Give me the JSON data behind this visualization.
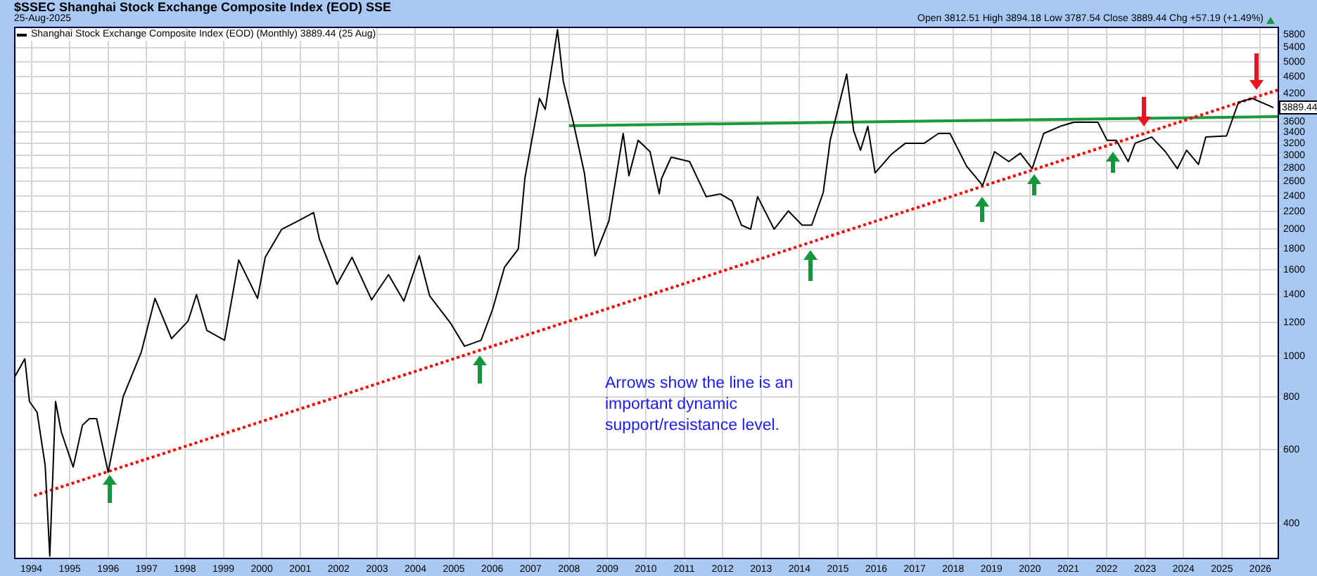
{
  "chart_data": {
    "type": "line",
    "title": "$SSEC Shanghai Stock Exchange Composite Index (EOD) SSE",
    "subtitle": "25-Aug-2025",
    "annotations": [
      "Open 3812.51 High 3894.18 Low 3787.54 Close 3889.44 Chg +57.19 (+1.49%)",
      {
        "text": "3889.44",
        "x": 2026.34,
        "y": 3889.44
      },
      "Arrows show the line is an important dynamic support/resistance level."
    ],
    "log": "y",
    "grid": true,
    "legend": "top left",
    "marker": "none",
    "xlim": [
      1993.55,
      2026.45
    ],
    "xticks": [
      1994,
      1995,
      1996,
      1997,
      1998,
      1999,
      2000,
      2001,
      2002,
      2003,
      2004,
      2005,
      2006,
      2007,
      2008,
      2009,
      2010,
      2011,
      2012,
      2013,
      2014,
      2015,
      2016,
      2017,
      2018,
      2019,
      2020,
      2021,
      2022,
      2023,
      2024,
      2025,
      2026
    ],
    "ylim": [
      332,
      6050
    ],
    "yticks": [
      400,
      600,
      800,
      1000,
      1200,
      1400,
      1600,
      1800,
      2000,
      2200,
      2400,
      2600,
      2800,
      3000,
      3200,
      3400,
      3600,
      4200,
      4600,
      5000,
      5400,
      5800
    ],
    "series": [
      {
        "name": "Shanghai Stock Exchange Composite Index (EOD) (Monthly) 3889.44 (25 Aug)",
        "color": "#000000",
        "line_style": "solid",
        "x": [
          1993.56,
          1993.83,
          1993.95,
          1994.15,
          1994.36,
          1994.48,
          1994.63,
          1994.78,
          1995.09,
          1995.33,
          1995.51,
          1995.7,
          1996.0,
          1996.39,
          1996.86,
          1997.22,
          1997.65,
          1998.08,
          1998.3,
          1998.57,
          1999.03,
          1999.4,
          1999.89,
          2000.09,
          2000.52,
          2000.89,
          2001.35,
          2001.5,
          2001.96,
          2002.35,
          2002.86,
          2003.3,
          2003.7,
          2004.1,
          2004.37,
          2004.92,
          2005.28,
          2005.71,
          2006.01,
          2006.32,
          2006.68,
          2006.85,
          2007.23,
          2007.38,
          2007.7,
          2007.85,
          2008.11,
          2008.4,
          2008.68,
          2009.04,
          2009.41,
          2009.56,
          2009.8,
          2010.11,
          2010.35,
          2010.41,
          2010.66,
          2011.14,
          2011.57,
          2011.94,
          2012.24,
          2012.49,
          2012.73,
          2012.91,
          2013.34,
          2013.71,
          2014.07,
          2014.32,
          2014.62,
          2014.8,
          2015.23,
          2015.41,
          2015.59,
          2015.78,
          2015.97,
          2016.39,
          2016.76,
          2017.25,
          2017.62,
          2017.92,
          2018.35,
          2018.77,
          2019.08,
          2019.45,
          2019.75,
          2020.06,
          2020.36,
          2020.79,
          2021.15,
          2021.77,
          2022.01,
          2022.25,
          2022.56,
          2022.74,
          2023.17,
          2023.53,
          2023.84,
          2024.08,
          2024.39,
          2024.58,
          2025.12,
          2025.43,
          2025.79,
          2026.34
        ],
        "values": [
          890,
          985,
          780,
          735,
          550,
          335,
          780,
          660,
          545,
          685,
          710,
          710,
          530,
          800,
          1020,
          1370,
          1100,
          1210,
          1400,
          1150,
          1090,
          1690,
          1370,
          1715,
          2000,
          2080,
          2190,
          1895,
          1480,
          1715,
          1360,
          1560,
          1350,
          1730,
          1390,
          1195,
          1055,
          1090,
          1290,
          1625,
          1795,
          2640,
          4090,
          3850,
          5950,
          4490,
          3590,
          2720,
          1730,
          2095,
          3375,
          2680,
          3250,
          3055,
          2425,
          2640,
          2965,
          2895,
          2390,
          2425,
          2335,
          2045,
          2000,
          2390,
          2000,
          2210,
          2045,
          2045,
          2445,
          3250,
          4670,
          3430,
          3080,
          3510,
          2720,
          3010,
          3200,
          3200,
          3375,
          3375,
          2825,
          2540,
          3055,
          2895,
          3030,
          2785,
          3375,
          3510,
          3590,
          3590,
          3250,
          3250,
          2895,
          3200,
          3310,
          3055,
          2785,
          3080,
          2850,
          3310,
          3330,
          4000,
          4090,
          3889.44
        ]
      },
      {
        "type": "line",
        "color": "#ff0000",
        "line_style": "dotted",
        "x": [
          1994.07,
          2026.45
        ],
        "values": [
          466,
          4280
        ]
      },
      {
        "type": "line",
        "color": "#1a9a3a",
        "line_style": "solid",
        "x": [
          2008.0,
          2026.45
        ],
        "values": [
          3520,
          3700
        ]
      }
    ]
  }
}
